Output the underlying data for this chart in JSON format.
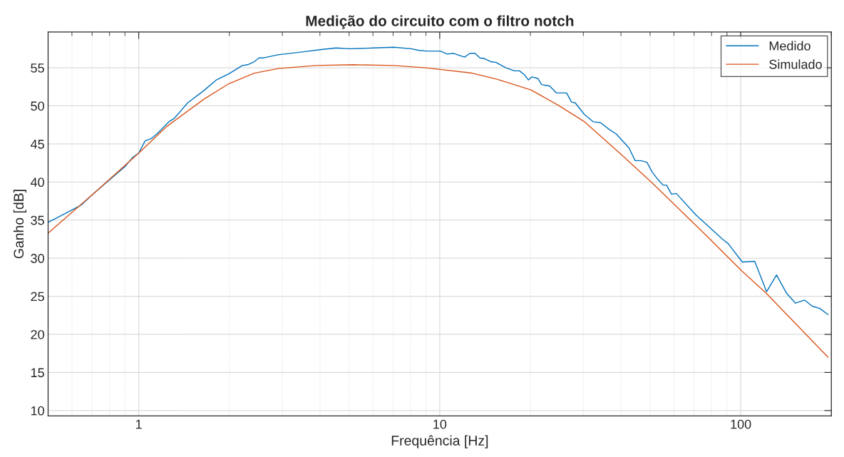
{
  "chart_data": {
    "type": "line",
    "title": "Medição do circuito com o filtro notch",
    "xlabel": "Frequência [Hz]",
    "ylabel": "Ganho [dB]",
    "log": "x",
    "xlim": [
      0.5,
      200
    ],
    "xticks": [
      1,
      10,
      100
    ],
    "ylim": [
      9.3,
      59.7
    ],
    "yticks": [
      10,
      15,
      20,
      25,
      30,
      35,
      40,
      45,
      50,
      55
    ],
    "grid": true,
    "legend": "top right",
    "line_style": "solid",
    "marker": "none",
    "series": [
      {
        "name": "Medido",
        "color": "#0072bd",
        "x": [
          0.5,
          0.598,
          0.645,
          0.695,
          0.795,
          0.904,
          0.953,
          1.0,
          1.05,
          1.1,
          1.155,
          1.258,
          1.306,
          1.356,
          1.454,
          1.645,
          1.81,
          1.92,
          1.99,
          2.21,
          2.3,
          2.42,
          2.51,
          2.6,
          2.9,
          3.53,
          4.04,
          4.52,
          5.03,
          6.04,
          7.04,
          8.04,
          8.5,
          9.0,
          10.05,
          10.6,
          11.1,
          12.1,
          12.6,
          13.1,
          13.6,
          14.1,
          14.8,
          15.4,
          16.6,
          17.7,
          18.4,
          19.1,
          19.7,
          20.2,
          21.2,
          21.8,
          23.2,
          24.4,
          26.4,
          27.4,
          28.2,
          30.2,
          32.4,
          34.2,
          36.6,
          38.6,
          42.5,
          44.6,
          46.6,
          48.8,
          50.8,
          52.9,
          55.2,
          56.7,
          58.9,
          61.1,
          70.9,
          87.0,
          90.9,
          101.2,
          111.3,
          121.9,
          131.5,
          142,
          152,
          163,
          173,
          183,
          195
        ],
        "values": [
          34.7,
          36.3,
          37.0,
          38.2,
          40.2,
          42.1,
          43.2,
          43.8,
          45.4,
          45.7,
          46.4,
          47.9,
          48.3,
          49.0,
          50.4,
          52.0,
          53.4,
          53.9,
          54.2,
          55.3,
          55.4,
          55.8,
          56.3,
          56.3,
          56.7,
          57.1,
          57.4,
          57.6,
          57.5,
          57.6,
          57.7,
          57.5,
          57.3,
          57.2,
          57.2,
          56.8,
          56.9,
          56.4,
          56.9,
          56.9,
          56.3,
          56.2,
          55.8,
          55.7,
          55.0,
          54.6,
          54.6,
          54.1,
          53.4,
          53.8,
          53.6,
          52.8,
          52.6,
          51.7,
          51.7,
          50.5,
          50.4,
          48.9,
          47.9,
          47.8,
          46.9,
          46.3,
          44.5,
          42.8,
          42.8,
          42.6,
          41.3,
          40.4,
          39.6,
          39.6,
          38.4,
          38.5,
          35.7,
          32.5,
          31.9,
          29.5,
          29.6,
          25.6,
          27.8,
          25.4,
          24.1,
          24.5,
          23.7,
          23.4,
          22.6
        ]
      },
      {
        "name": "Simulado",
        "color": "#d95319",
        "x": [
          0.5,
          0.695,
          1.0,
          1.24,
          1.65,
          1.99,
          2.42,
          2.91,
          3.89,
          5.16,
          7.04,
          9.0,
          12.8,
          15.5,
          20.1,
          24.7,
          30.3,
          40.4,
          50.4,
          61.1,
          78.1,
          101,
          121.5,
          195
        ],
        "values": [
          33.3,
          38.2,
          43.8,
          47.3,
          50.9,
          52.9,
          54.3,
          54.9,
          55.3,
          55.4,
          55.3,
          55.0,
          54.3,
          53.5,
          52.1,
          50.1,
          47.9,
          43.5,
          40.0,
          36.8,
          32.7,
          28.3,
          25.4,
          17.0
        ]
      }
    ]
  }
}
